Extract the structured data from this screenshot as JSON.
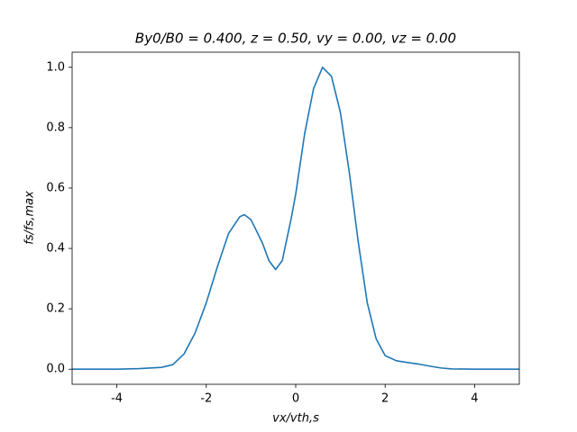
{
  "chart_data": {
    "type": "line",
    "title": "By0/B0 = 0.400, z = 0.50, vy = 0.00, vz = 0.00",
    "xlabel": "vx/vth,s",
    "ylabel": "fs/fs,max",
    "x": [
      -5,
      -4,
      -3.5,
      -3,
      -2.75,
      -2.5,
      -2.25,
      -2,
      -1.75,
      -1.5,
      -1.25,
      -1.15,
      -1,
      -0.75,
      -0.6,
      -0.45,
      -0.3,
      -0.1,
      0,
      0.2,
      0.4,
      0.6,
      0.8,
      1.0,
      1.2,
      1.4,
      1.6,
      1.8,
      2.0,
      2.25,
      2.5,
      2.75,
      3.0,
      3.25,
      3.5,
      4,
      5
    ],
    "series": [
      {
        "color": "#1f77b4",
        "values": [
          0,
          0,
          0.002,
          0.006,
          0.015,
          0.05,
          0.12,
          0.22,
          0.34,
          0.45,
          0.505,
          0.512,
          0.495,
          0.42,
          0.36,
          0.33,
          0.36,
          0.5,
          0.58,
          0.78,
          0.93,
          1.0,
          0.97,
          0.85,
          0.65,
          0.42,
          0.22,
          0.1,
          0.045,
          0.028,
          0.022,
          0.017,
          0.01,
          0.004,
          0.001,
          0,
          0
        ]
      }
    ],
    "xlim": [
      -5,
      5
    ],
    "ylim": [
      -0.05,
      1.05
    ],
    "xticks": [
      -4,
      -2,
      0,
      2,
      4
    ],
    "yticks": [
      {
        "value": 0,
        "label": "0.0"
      },
      {
        "value": 0.2,
        "label": "0.2"
      },
      {
        "value": 0.4,
        "label": "0.4"
      },
      {
        "value": 0.6,
        "label": "0.6"
      },
      {
        "value": 0.8,
        "label": "0.8"
      },
      {
        "value": 1.0,
        "label": "1.0"
      }
    ],
    "grid": false
  }
}
